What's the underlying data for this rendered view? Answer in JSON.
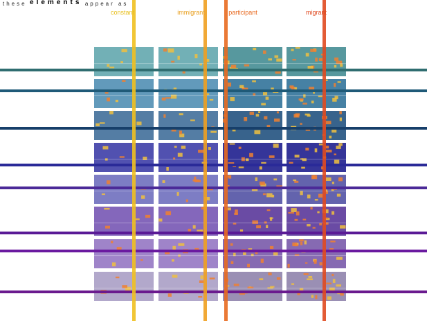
{
  "header": {
    "parts": [
      "these",
      "elements",
      "appear as"
    ]
  },
  "columns": [
    {
      "label": "constant"
    },
    {
      "label": "immigrant"
    },
    {
      "label": "participant"
    },
    {
      "label": "migrant"
    }
  ]
}
